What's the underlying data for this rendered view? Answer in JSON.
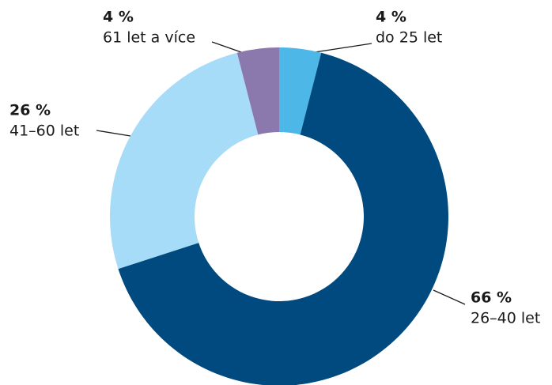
{
  "chart_data": {
    "type": "donut",
    "categories": [
      "do 25 let",
      "26–40 let",
      "41–60 let",
      "61 let a více"
    ],
    "values": [
      4,
      66,
      26,
      4
    ],
    "value_labels": [
      "4 %",
      "66 %",
      "26 %",
      "4 %"
    ],
    "colors": [
      "#4db8e8",
      "#004a7f",
      "#a6dcf7",
      "#8b78ad"
    ]
  }
}
